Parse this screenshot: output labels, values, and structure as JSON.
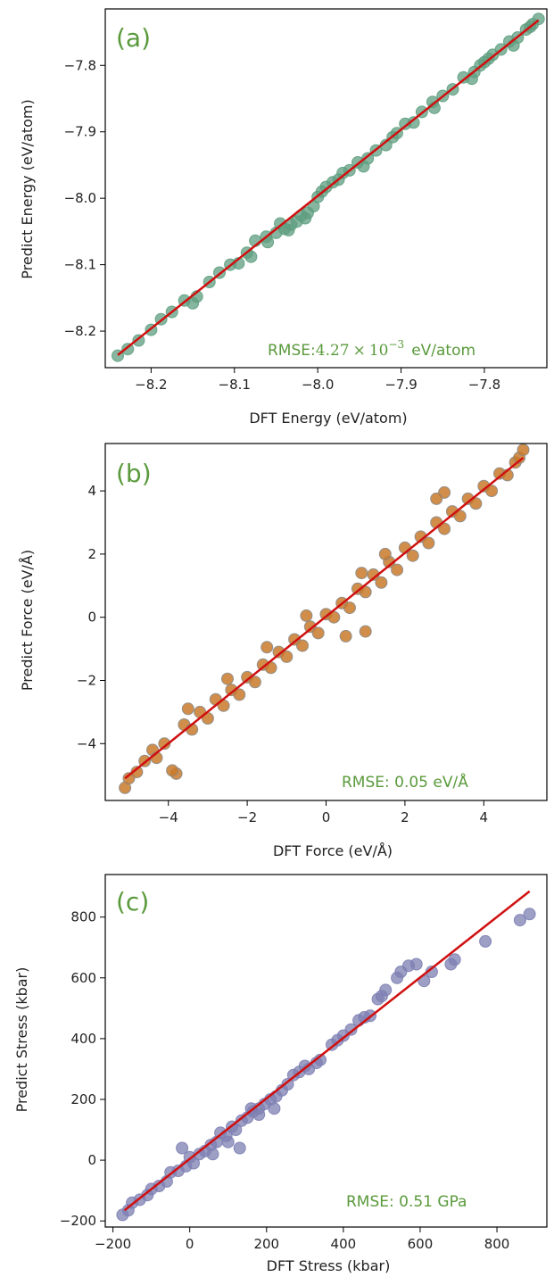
{
  "colors": {
    "accent_text": "#5a9a3c",
    "fit_line": "#d01010",
    "energy_points": "#5f9e80",
    "force_points": "#c97a2a",
    "force_edge": "#8a8a8a",
    "stress_points": "#7d7fb2"
  },
  "chart_data": [
    {
      "type": "scatter",
      "panel_label": "(a)",
      "xlabel": "DFT Energy (eV/atom)",
      "ylabel": "Predict Energy (eV/atom)",
      "xlim": [
        -8.255,
        -7.725
      ],
      "ylim": [
        -8.255,
        -7.715
      ],
      "xticks": [
        -8.2,
        -8.1,
        -8.0,
        -7.9,
        -7.8
      ],
      "yticks": [
        -8.2,
        -8.1,
        -8.0,
        -7.9,
        -7.8
      ],
      "tick_labels_x": [
        "-8.2",
        "-8.1",
        "-8.0",
        "-7.9",
        "-7.8"
      ],
      "tick_labels_y": [
        "-8.2",
        "-8.1",
        "-8.0",
        "-7.9",
        "-7.8"
      ],
      "annotation": {
        "prefix": "RMSE:",
        "mantissa": "4.27",
        "times": "×",
        "base": "10",
        "exponent": "−3",
        "unit": "eV/atom"
      },
      "fit_line": [
        [
          -8.24,
          -8.236
        ],
        [
          -7.735,
          -7.732
        ]
      ],
      "series": [
        {
          "points": [
            [
              -8.24,
              -8.237
            ],
            [
              -8.228,
              -8.227
            ],
            [
              -8.215,
              -8.214
            ],
            [
              -8.2,
              -8.198
            ],
            [
              -8.188,
              -8.182
            ],
            [
              -8.175,
              -8.171
            ],
            [
              -8.16,
              -8.154
            ],
            [
              -8.145,
              -8.148
            ],
            [
              -8.13,
              -8.126
            ],
            [
              -8.118,
              -8.112
            ],
            [
              -8.105,
              -8.1
            ],
            [
              -8.095,
              -8.098
            ],
            [
              -8.085,
              -8.082
            ],
            [
              -8.075,
              -8.064
            ],
            [
              -8.062,
              -8.058
            ],
            [
              -8.05,
              -8.052
            ],
            [
              -8.04,
              -8.046
            ],
            [
              -8.032,
              -8.04
            ],
            [
              -8.025,
              -8.035
            ],
            [
              -8.02,
              -8.026
            ],
            [
              -8.012,
              -8.022
            ],
            [
              -8.005,
              -8.012
            ],
            [
              -8.0,
              -7.998
            ],
            [
              -7.99,
              -7.983
            ],
            [
              -7.982,
              -7.976
            ],
            [
              -7.975,
              -7.972
            ],
            [
              -7.962,
              -7.958
            ],
            [
              -7.952,
              -7.946
            ],
            [
              -7.94,
              -7.94
            ],
            [
              -7.93,
              -7.928
            ],
            [
              -7.918,
              -7.92
            ],
            [
              -7.905,
              -7.902
            ],
            [
              -7.895,
              -7.888
            ],
            [
              -7.885,
              -7.886
            ],
            [
              -7.875,
              -7.87
            ],
            [
              -7.862,
              -7.855
            ],
            [
              -7.85,
              -7.846
            ],
            [
              -7.838,
              -7.836
            ],
            [
              -7.825,
              -7.818
            ],
            [
              -7.812,
              -7.81
            ],
            [
              -7.8,
              -7.795
            ],
            [
              -7.79,
              -7.784
            ],
            [
              -7.78,
              -7.776
            ],
            [
              -7.77,
              -7.764
            ],
            [
              -7.76,
              -7.758
            ],
            [
              -7.75,
              -7.746
            ],
            [
              -7.742,
              -7.738
            ],
            [
              -7.735,
              -7.73
            ],
            [
              -8.15,
              -8.158
            ],
            [
              -8.08,
              -8.088
            ],
            [
              -8.06,
              -8.066
            ],
            [
              -8.045,
              -8.038
            ],
            [
              -8.035,
              -8.048
            ],
            [
              -8.015,
              -8.03
            ],
            [
              -7.995,
              -7.99
            ],
            [
              -7.97,
              -7.962
            ],
            [
              -7.945,
              -7.952
            ],
            [
              -7.91,
              -7.908
            ],
            [
              -7.86,
              -7.864
            ],
            [
              -7.815,
              -7.82
            ],
            [
              -7.805,
              -7.8
            ],
            [
              -7.795,
              -7.79
            ],
            [
              -7.765,
              -7.77
            ],
            [
              -7.745,
              -7.742
            ]
          ]
        }
      ]
    },
    {
      "type": "scatter",
      "panel_label": "(b)",
      "xlabel": "DFT Force (eV/Å)",
      "ylabel": "Predict Force (eV/Å)",
      "xlim": [
        -5.6,
        5.6
      ],
      "ylim": [
        -5.8,
        5.5
      ],
      "xticks": [
        -4,
        -2,
        0,
        2,
        4
      ],
      "yticks": [
        -4,
        -2,
        0,
        2,
        4
      ],
      "tick_labels_x": [
        "-4",
        "-2",
        "0",
        "2",
        "4"
      ],
      "tick_labels_y": [
        "-4",
        "-2",
        "0",
        "2",
        "4"
      ],
      "annotation": {
        "text": "RMSE: 0.05 eV/Å"
      },
      "fit_line": [
        [
          -5.1,
          -5.1
        ],
        [
          5.0,
          5.05
        ]
      ],
      "series": [
        {
          "points": [
            [
              -5.1,
              -5.4
            ],
            [
              -5.0,
              -5.1
            ],
            [
              -4.8,
              -4.9
            ],
            [
              -4.6,
              -4.55
            ],
            [
              -4.4,
              -4.2
            ],
            [
              -4.3,
              -4.45
            ],
            [
              -4.1,
              -4.0
            ],
            [
              -3.8,
              -4.95
            ],
            [
              -3.9,
              -4.85
            ],
            [
              -3.6,
              -3.4
            ],
            [
              -3.4,
              -3.55
            ],
            [
              -3.2,
              -3.0
            ],
            [
              -3.0,
              -3.2
            ],
            [
              -2.8,
              -2.6
            ],
            [
              -2.6,
              -2.8
            ],
            [
              -2.4,
              -2.3
            ],
            [
              -2.2,
              -2.45
            ],
            [
              -2.0,
              -1.9
            ],
            [
              -1.8,
              -2.05
            ],
            [
              -1.6,
              -1.5
            ],
            [
              -1.4,
              -1.6
            ],
            [
              -1.2,
              -1.1
            ],
            [
              -1.0,
              -1.25
            ],
            [
              -0.8,
              -0.7
            ],
            [
              -0.6,
              -0.9
            ],
            [
              -0.4,
              -0.3
            ],
            [
              -0.2,
              -0.5
            ],
            [
              0.0,
              0.1
            ],
            [
              0.2,
              0.0
            ],
            [
              0.4,
              0.45
            ],
            [
              0.6,
              0.3
            ],
            [
              0.8,
              0.9
            ],
            [
              1.0,
              0.8
            ],
            [
              1.2,
              1.35
            ],
            [
              1.4,
              1.1
            ],
            [
              1.6,
              1.75
            ],
            [
              1.8,
              1.5
            ],
            [
              2.0,
              2.2
            ],
            [
              2.2,
              1.95
            ],
            [
              2.4,
              2.55
            ],
            [
              2.6,
              2.35
            ],
            [
              2.8,
              3.0
            ],
            [
              3.0,
              2.8
            ],
            [
              3.2,
              3.35
            ],
            [
              3.4,
              3.2
            ],
            [
              3.6,
              3.75
            ],
            [
              3.8,
              3.6
            ],
            [
              4.0,
              4.15
            ],
            [
              4.2,
              4.0
            ],
            [
              4.4,
              4.55
            ],
            [
              4.6,
              4.5
            ],
            [
              4.8,
              4.9
            ],
            [
              4.9,
              5.05
            ],
            [
              5.0,
              5.3
            ],
            [
              3.0,
              3.95
            ],
            [
              2.8,
              3.75
            ],
            [
              0.5,
              -0.6
            ],
            [
              1.0,
              -0.45
            ],
            [
              -1.5,
              -0.95
            ],
            [
              -2.5,
              -1.95
            ],
            [
              -3.5,
              -2.9
            ],
            [
              1.5,
              2.0
            ],
            [
              -0.5,
              0.05
            ],
            [
              0.9,
              1.4
            ]
          ]
        }
      ]
    },
    {
      "type": "scatter",
      "panel_label": "(c)",
      "xlabel": "DFT Stress (kbar)",
      "ylabel": "Predict Stress (kbar)",
      "xlim": [
        -220,
        930
      ],
      "ylim": [
        -220,
        940
      ],
      "xticks": [
        -200,
        0,
        200,
        400,
        600,
        800
      ],
      "yticks": [
        -200,
        0,
        200,
        400,
        600,
        800
      ],
      "tick_labels_x": [
        "-200",
        "0",
        "200",
        "400",
        "600",
        "800"
      ],
      "tick_labels_y": [
        "-200",
        "0",
        "200",
        "400",
        "600",
        "800"
      ],
      "annotation": {
        "text": "RMSE: 0.51 GPa"
      },
      "fit_line": [
        [
          -170,
          -165
        ],
        [
          885,
          885
        ]
      ],
      "series": [
        {
          "points": [
            [
              -175,
              -180
            ],
            [
              -160,
              -165
            ],
            [
              -150,
              -140
            ],
            [
              -130,
              -130
            ],
            [
              -110,
              -115
            ],
            [
              -100,
              -95
            ],
            [
              -80,
              -85
            ],
            [
              -60,
              -70
            ],
            [
              -50,
              -40
            ],
            [
              -30,
              -35
            ],
            [
              -10,
              -20
            ],
            [
              0,
              10
            ],
            [
              10,
              -10
            ],
            [
              25,
              20
            ],
            [
              40,
              30
            ],
            [
              55,
              50
            ],
            [
              70,
              60
            ],
            [
              80,
              90
            ],
            [
              95,
              80
            ],
            [
              110,
              110
            ],
            [
              120,
              100
            ],
            [
              135,
              130
            ],
            [
              150,
              140
            ],
            [
              165,
              160
            ],
            [
              180,
              170
            ],
            [
              195,
              185
            ],
            [
              210,
              200
            ],
            [
              225,
              210
            ],
            [
              240,
              230
            ],
            [
              255,
              250
            ],
            [
              270,
              280
            ],
            [
              285,
              290
            ],
            [
              300,
              310
            ],
            [
              310,
              300
            ],
            [
              330,
              320
            ],
            [
              340,
              330
            ],
            [
              370,
              380
            ],
            [
              385,
              395
            ],
            [
              400,
              410
            ],
            [
              420,
              430
            ],
            [
              440,
              460
            ],
            [
              455,
              470
            ],
            [
              470,
              475
            ],
            [
              490,
              530
            ],
            [
              500,
              540
            ],
            [
              510,
              560
            ],
            [
              540,
              600
            ],
            [
              550,
              620
            ],
            [
              570,
              640
            ],
            [
              590,
              645
            ],
            [
              610,
              590
            ],
            [
              630,
              620
            ],
            [
              680,
              645
            ],
            [
              690,
              660
            ],
            [
              770,
              720
            ],
            [
              860,
              790
            ],
            [
              885,
              810
            ],
            [
              130,
              40
            ],
            [
              100,
              60
            ],
            [
              60,
              20
            ],
            [
              -20,
              40
            ],
            [
              160,
              170
            ],
            [
              220,
              170
            ],
            [
              180,
              150
            ]
          ]
        }
      ]
    }
  ]
}
